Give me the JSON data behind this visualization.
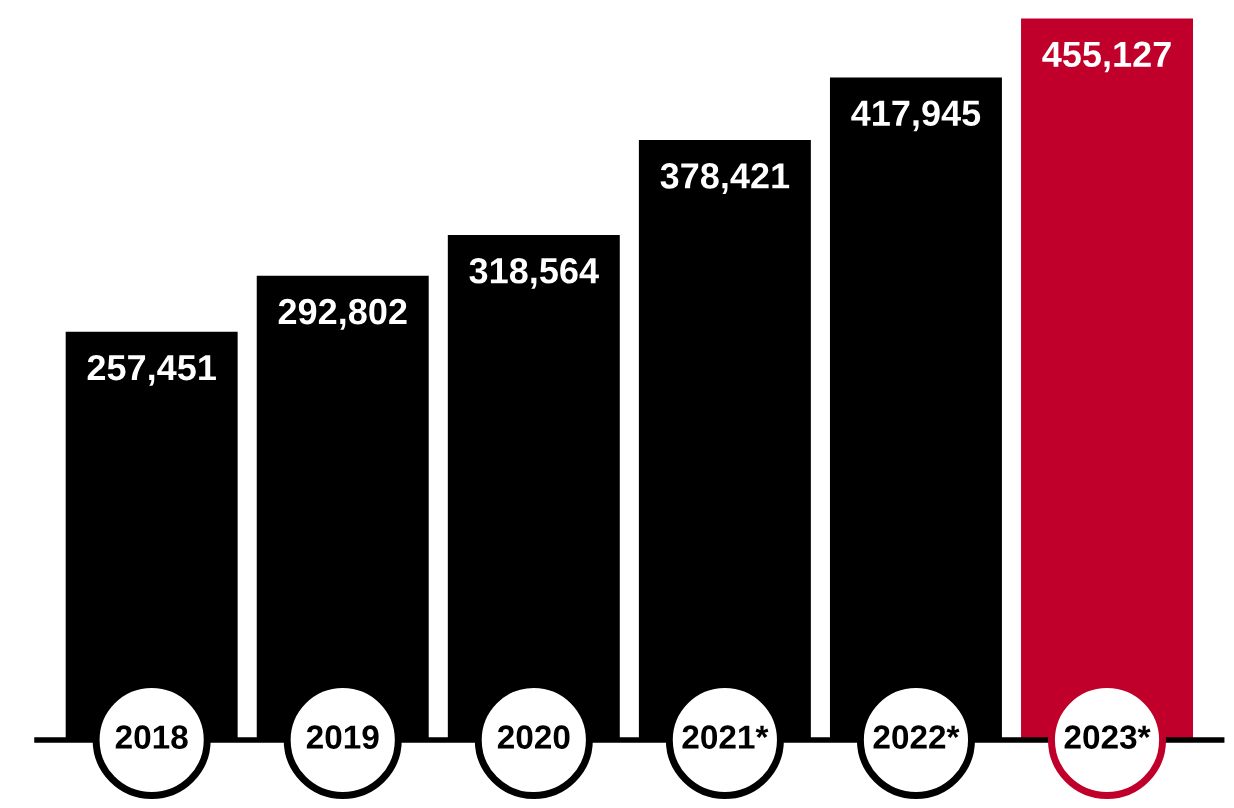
{
  "chart_data": {
    "type": "bar",
    "categories": [
      "2018",
      "2019",
      "2020",
      "2021*",
      "2022*",
      "2023*"
    ],
    "values": [
      257451,
      292802,
      318564,
      378421,
      417945,
      455127
    ],
    "colors": [
      "#000000",
      "#000000",
      "#000000",
      "#000000",
      "#000000",
      "#c0002a"
    ],
    "value_labels": [
      "257,451",
      "292,802",
      "318,564",
      "378,421",
      "417,945",
      "455,127"
    ],
    "legend": false
  }
}
